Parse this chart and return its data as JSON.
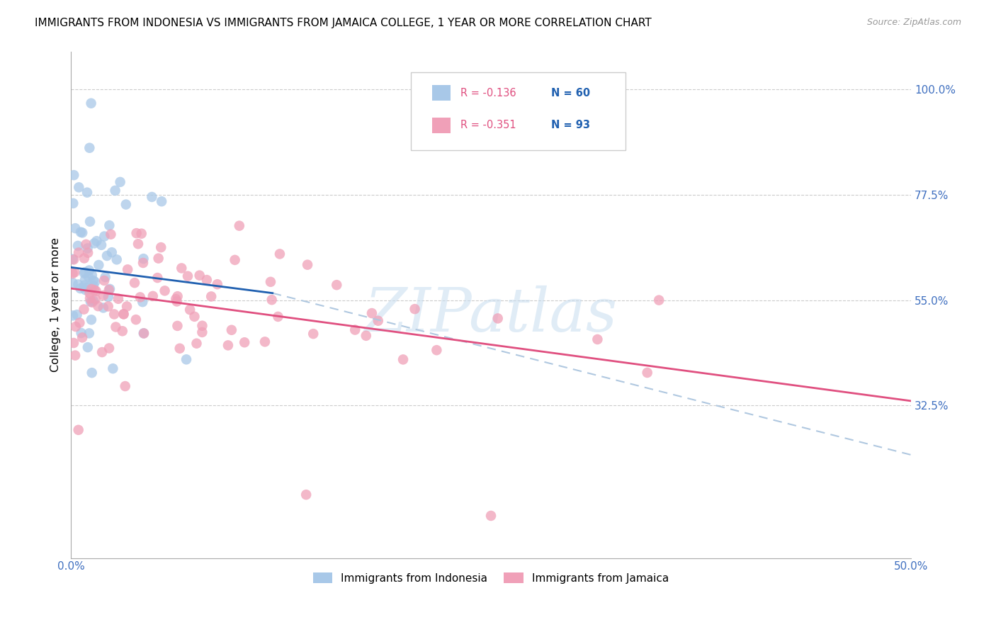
{
  "title": "IMMIGRANTS FROM INDONESIA VS IMMIGRANTS FROM JAMAICA COLLEGE, 1 YEAR OR MORE CORRELATION CHART",
  "source": "Source: ZipAtlas.com",
  "ylabel": "College, 1 year or more",
  "color_indonesia": "#a8c8e8",
  "color_jamaica": "#f0a0b8",
  "color_line_indonesia": "#2060b0",
  "color_line_jamaica": "#e05080",
  "color_dashed": "#b0c8e0",
  "watermark_text": "ZIPatlas",
  "background": "#ffffff",
  "xlim": [
    0.0,
    0.5
  ],
  "ylim": [
    0.0,
    1.08
  ],
  "ytick_positions": [
    0.325,
    0.55,
    0.775,
    1.0
  ],
  "ytick_labels": [
    "32.5%",
    "55.0%",
    "77.5%",
    "100.0%"
  ],
  "xtick_positions": [
    0.0,
    0.1,
    0.2,
    0.3,
    0.4,
    0.5
  ],
  "xtick_labels": [
    "0.0%",
    "",
    "",
    "",
    "",
    "50.0%"
  ],
  "legend_r1": "R = -0.136",
  "legend_n1": "N = 60",
  "legend_r2": "R = -0.351",
  "legend_n2": "N = 93",
  "legend_color_r": "#e05080",
  "legend_color_n": "#2060b0",
  "indo_line_x0": 0.0,
  "indo_line_x1": 0.12,
  "indo_line_y0": 0.62,
  "indo_line_y1": 0.565,
  "jam_line_x0": 0.0,
  "jam_line_x1": 0.5,
  "jam_line_y0": 0.575,
  "jam_line_y1": 0.335,
  "dash_line_x0": 0.12,
  "dash_line_x1": 0.5,
  "dash_line_y0": 0.565,
  "dash_line_y1": 0.22
}
